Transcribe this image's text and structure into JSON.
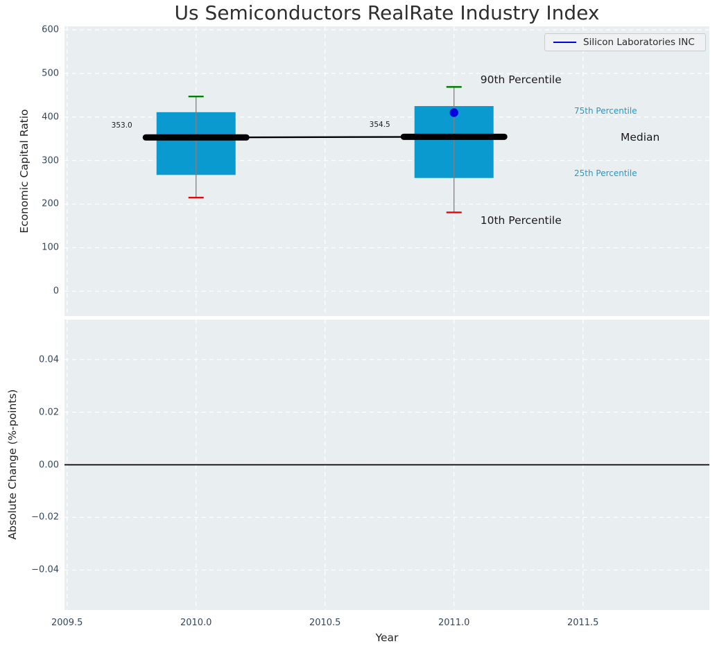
{
  "title": "Us Semiconductors RealRate Industry Index",
  "legend": {
    "label": "Silicon Laboratories INC",
    "position": "upper right"
  },
  "chart_data": {
    "type": "boxplot",
    "title": "Us Semiconductors RealRate Industry Index",
    "xlabel": "Year",
    "xlim": [
      2009.49,
      2011.99
    ],
    "xticks": [
      2009.5,
      2010.0,
      2010.5,
      2011.0,
      2011.5
    ],
    "grid": "white dashed on light-gray background",
    "top_panel": {
      "ylabel": "Economic Capital Ratio",
      "ylim": [
        -57,
        608
      ],
      "yticks": [
        600,
        500,
        400,
        300,
        200,
        100,
        0
      ],
      "boxes": [
        {
          "year": 2010,
          "p10": 215,
          "p25": 267,
          "median": 353.0,
          "p75": 411,
          "p90": 447,
          "median_label": "353.0"
        },
        {
          "year": 2011,
          "p10": 181,
          "p25": 260,
          "median": 354.5,
          "p75": 425,
          "p90": 469,
          "median_label": "354.5"
        }
      ],
      "company_points": [
        {
          "name": "Silicon Laboratories INC",
          "year": 2011,
          "value": 410
        }
      ],
      "percentile_labels": {
        "p90": "90th Percentile",
        "p75": "75th Percentile",
        "median": "Median",
        "p25": "25th Percentile",
        "p10": "10th Percentile"
      }
    },
    "bottom_panel": {
      "ylabel": "Absolute Change (%-points)",
      "ylim": [
        -0.0552,
        0.0552
      ],
      "yticks": [
        0.04,
        0.02,
        0.0,
        -0.02,
        -0.04
      ],
      "zero_line": 0.0
    }
  },
  "colors": {
    "box_fill": "#0a9ad0",
    "median_line": "#000000",
    "p90_cap": "#008000",
    "p10_cap": "#ee0000",
    "whisker": "#808080",
    "company_marker": "#0000e0",
    "axes_background": "#e9eef1",
    "grid": "#ffffff",
    "tick_label": "#33475c",
    "percentile_label_blue": "#189cd2",
    "zero_line": "#000000"
  }
}
